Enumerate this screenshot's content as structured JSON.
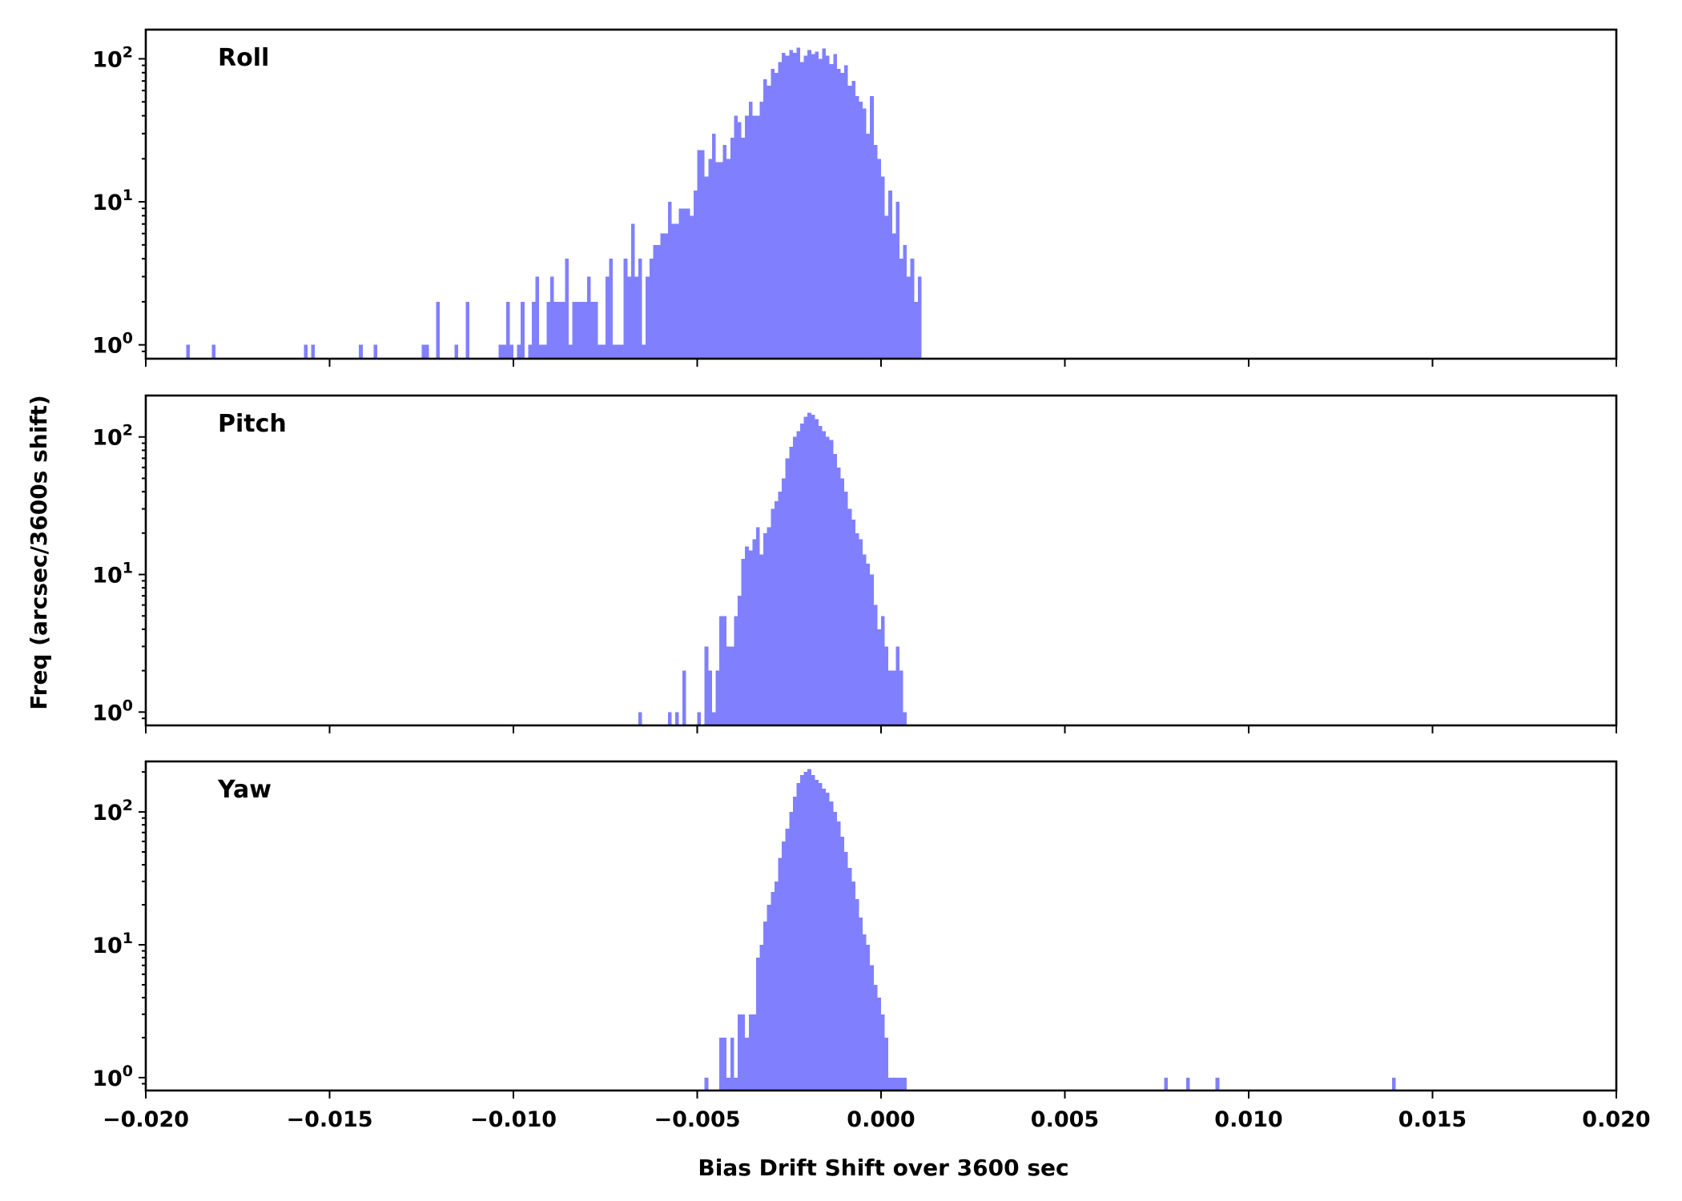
{
  "chart_data": {
    "type": "histogram",
    "y_scale": "log",
    "shared_x": true,
    "xlabel": "Bias Drift Shift over 3600 sec",
    "ylabel": "Freq (arcsec/3600s shift)",
    "xlim": [
      -0.02,
      0.02
    ],
    "xticks": [
      -0.02,
      -0.015,
      -0.01,
      -0.005,
      0.0,
      0.005,
      0.01,
      0.015,
      0.02
    ],
    "xtick_labels": [
      "−0.020",
      "−0.015",
      "−0.010",
      "−0.005",
      "0.000",
      "0.005",
      "0.010",
      "0.015",
      "0.020"
    ],
    "bar_color": "#8080ff",
    "grid": false,
    "panels": [
      {
        "label": "Roll",
        "ylim": [
          0.8,
          160
        ],
        "yticks": [
          {
            "value": 1,
            "exp": "0"
          },
          {
            "value": 10,
            "exp": "1"
          },
          {
            "value": 100,
            "exp": "2"
          }
        ],
        "bins": [
          [
            -0.0189,
            1
          ],
          [
            -0.0182,
            1
          ],
          [
            -0.0157,
            1
          ],
          [
            -0.0155,
            1
          ],
          [
            -0.0142,
            1
          ],
          [
            -0.0138,
            1
          ],
          [
            -0.0125,
            1
          ],
          [
            -0.0124,
            1
          ],
          [
            -0.0121,
            2
          ],
          [
            -0.0116,
            1
          ],
          [
            -0.0113,
            2
          ],
          [
            -0.0104,
            1
          ],
          [
            -0.0103,
            1
          ],
          [
            -0.0102,
            2
          ],
          [
            -0.0101,
            1
          ],
          [
            -0.0099,
            1
          ],
          [
            -0.0098,
            2
          ],
          [
            -0.0096,
            1
          ],
          [
            -0.0095,
            2
          ],
          [
            -0.0094,
            3
          ],
          [
            -0.0093,
            1
          ],
          [
            -0.0092,
            1
          ],
          [
            -0.0091,
            2
          ],
          [
            -0.009,
            3
          ],
          [
            -0.0089,
            2
          ],
          [
            -0.0088,
            2
          ],
          [
            -0.0087,
            2
          ],
          [
            -0.0086,
            4
          ],
          [
            -0.0085,
            1
          ],
          [
            -0.0084,
            2
          ],
          [
            -0.0083,
            2
          ],
          [
            -0.0082,
            2
          ],
          [
            -0.0081,
            2
          ],
          [
            -0.008,
            3
          ],
          [
            -0.0079,
            2
          ],
          [
            -0.0078,
            2
          ],
          [
            -0.0077,
            1
          ],
          [
            -0.0076,
            1
          ],
          [
            -0.0075,
            3
          ],
          [
            -0.0074,
            4
          ],
          [
            -0.0073,
            1
          ],
          [
            -0.0072,
            1
          ],
          [
            -0.0071,
            1
          ],
          [
            -0.007,
            4
          ],
          [
            -0.0069,
            3
          ],
          [
            -0.0068,
            7
          ],
          [
            -0.0067,
            3
          ],
          [
            -0.0066,
            4
          ],
          [
            -0.0065,
            1
          ],
          [
            -0.0064,
            3
          ],
          [
            -0.0063,
            4
          ],
          [
            -0.0062,
            5
          ],
          [
            -0.0061,
            5
          ],
          [
            -0.006,
            6
          ],
          [
            -0.0059,
            6
          ],
          [
            -0.0058,
            10
          ],
          [
            -0.0057,
            7
          ],
          [
            -0.0056,
            7
          ],
          [
            -0.0055,
            9
          ],
          [
            -0.0054,
            9
          ],
          [
            -0.0053,
            9
          ],
          [
            -0.0052,
            8
          ],
          [
            -0.0051,
            12
          ],
          [
            -0.005,
            23
          ],
          [
            -0.0049,
            23
          ],
          [
            -0.0048,
            15
          ],
          [
            -0.0047,
            20
          ],
          [
            -0.0046,
            30
          ],
          [
            -0.0045,
            19
          ],
          [
            -0.0044,
            19
          ],
          [
            -0.0043,
            25
          ],
          [
            -0.0042,
            20
          ],
          [
            -0.0041,
            28
          ],
          [
            -0.004,
            40
          ],
          [
            -0.0039,
            36
          ],
          [
            -0.0038,
            28
          ],
          [
            -0.0037,
            40
          ],
          [
            -0.0036,
            50
          ],
          [
            -0.0035,
            40
          ],
          [
            -0.0034,
            40
          ],
          [
            -0.0033,
            50
          ],
          [
            -0.0032,
            72
          ],
          [
            -0.0031,
            65
          ],
          [
            -0.003,
            85
          ],
          [
            -0.0029,
            80
          ],
          [
            -0.0028,
            95
          ],
          [
            -0.0027,
            110
          ],
          [
            -0.0026,
            105
          ],
          [
            -0.0025,
            115
          ],
          [
            -0.0024,
            110
          ],
          [
            -0.0023,
            120
          ],
          [
            -0.0022,
            95
          ],
          [
            -0.0021,
            105
          ],
          [
            -0.002,
            115
          ],
          [
            -0.0019,
            108
          ],
          [
            -0.0018,
            112
          ],
          [
            -0.0017,
            100
          ],
          [
            -0.0016,
            118
          ],
          [
            -0.0015,
            105
          ],
          [
            -0.0014,
            92
          ],
          [
            -0.0013,
            108
          ],
          [
            -0.0012,
            85
          ],
          [
            -0.0011,
            80
          ],
          [
            -0.001,
            90
          ],
          [
            -0.0009,
            65
          ],
          [
            -0.0008,
            70
          ],
          [
            -0.0007,
            55
          ],
          [
            -0.0006,
            50
          ],
          [
            -0.0005,
            45
          ],
          [
            -0.0004,
            30
          ],
          [
            -0.0003,
            55
          ],
          [
            -0.0002,
            25
          ],
          [
            -0.0001,
            20
          ],
          [
            0.0,
            15
          ],
          [
            0.0001,
            8
          ],
          [
            0.0002,
            12
          ],
          [
            0.0003,
            6
          ],
          [
            0.0004,
            10
          ],
          [
            0.0005,
            4
          ],
          [
            0.0006,
            5
          ],
          [
            0.0007,
            3
          ],
          [
            0.0008,
            4
          ],
          [
            0.0009,
            2
          ],
          [
            0.001,
            3
          ]
        ]
      },
      {
        "label": "Pitch",
        "ylim": [
          0.8,
          200
        ],
        "yticks": [
          {
            "value": 1,
            "exp": "0"
          },
          {
            "value": 10,
            "exp": "1"
          },
          {
            "value": 100,
            "exp": "2"
          }
        ],
        "bins": [
          [
            -0.0066,
            1
          ],
          [
            -0.0058,
            1
          ],
          [
            -0.0056,
            1
          ],
          [
            -0.0054,
            2
          ],
          [
            -0.005,
            1
          ],
          [
            -0.0048,
            3
          ],
          [
            -0.0047,
            2
          ],
          [
            -0.0046,
            1
          ],
          [
            -0.0045,
            2
          ],
          [
            -0.0044,
            5
          ],
          [
            -0.0043,
            5
          ],
          [
            -0.0042,
            3
          ],
          [
            -0.0041,
            3
          ],
          [
            -0.004,
            5
          ],
          [
            -0.0039,
            7
          ],
          [
            -0.0038,
            13
          ],
          [
            -0.0037,
            16
          ],
          [
            -0.0036,
            15
          ],
          [
            -0.0035,
            18
          ],
          [
            -0.0034,
            22
          ],
          [
            -0.0033,
            14
          ],
          [
            -0.0032,
            20
          ],
          [
            -0.0031,
            22
          ],
          [
            -0.003,
            30
          ],
          [
            -0.0029,
            34
          ],
          [
            -0.0028,
            40
          ],
          [
            -0.0027,
            50
          ],
          [
            -0.0026,
            70
          ],
          [
            -0.0025,
            85
          ],
          [
            -0.0024,
            100
          ],
          [
            -0.0023,
            110
          ],
          [
            -0.0022,
            125
          ],
          [
            -0.0021,
            140
          ],
          [
            -0.002,
            150
          ],
          [
            -0.0019,
            145
          ],
          [
            -0.0018,
            135
          ],
          [
            -0.0017,
            120
          ],
          [
            -0.0016,
            110
          ],
          [
            -0.0015,
            100
          ],
          [
            -0.0014,
            95
          ],
          [
            -0.0013,
            75
          ],
          [
            -0.0012,
            60
          ],
          [
            -0.0011,
            50
          ],
          [
            -0.001,
            40
          ],
          [
            -0.0009,
            30
          ],
          [
            -0.0008,
            25
          ],
          [
            -0.0007,
            20
          ],
          [
            -0.0006,
            18
          ],
          [
            -0.0005,
            14
          ],
          [
            -0.0004,
            12
          ],
          [
            -0.0003,
            10
          ],
          [
            -0.0002,
            6
          ],
          [
            -0.0001,
            4
          ],
          [
            0.0,
            5
          ],
          [
            0.0001,
            3
          ],
          [
            0.0002,
            2
          ],
          [
            0.0003,
            2
          ],
          [
            0.0004,
            3
          ],
          [
            0.0005,
            2
          ],
          [
            0.0006,
            1
          ]
        ]
      },
      {
        "label": "Yaw",
        "ylim": [
          0.8,
          240
        ],
        "yticks": [
          {
            "value": 1,
            "exp": "0"
          },
          {
            "value": 10,
            "exp": "1"
          },
          {
            "value": 100,
            "exp": "2"
          }
        ],
        "bins": [
          [
            -0.0048,
            1
          ],
          [
            -0.0044,
            2
          ],
          [
            -0.0043,
            2
          ],
          [
            -0.0042,
            1
          ],
          [
            -0.0041,
            2
          ],
          [
            -0.004,
            1
          ],
          [
            -0.0039,
            3
          ],
          [
            -0.0038,
            3
          ],
          [
            -0.0037,
            2
          ],
          [
            -0.0036,
            3
          ],
          [
            -0.0035,
            3
          ],
          [
            -0.0034,
            8
          ],
          [
            -0.0033,
            10
          ],
          [
            -0.0032,
            15
          ],
          [
            -0.0031,
            20
          ],
          [
            -0.003,
            25
          ],
          [
            -0.0029,
            30
          ],
          [
            -0.0028,
            45
          ],
          [
            -0.0027,
            60
          ],
          [
            -0.0026,
            75
          ],
          [
            -0.0025,
            100
          ],
          [
            -0.0024,
            130
          ],
          [
            -0.0023,
            165
          ],
          [
            -0.0022,
            190
          ],
          [
            -0.0021,
            200
          ],
          [
            -0.002,
            210
          ],
          [
            -0.0019,
            190
          ],
          [
            -0.0018,
            175
          ],
          [
            -0.0017,
            165
          ],
          [
            -0.0016,
            150
          ],
          [
            -0.0015,
            140
          ],
          [
            -0.0014,
            120
          ],
          [
            -0.0013,
            100
          ],
          [
            -0.0012,
            85
          ],
          [
            -0.0011,
            65
          ],
          [
            -0.001,
            50
          ],
          [
            -0.0009,
            38
          ],
          [
            -0.0008,
            30
          ],
          [
            -0.0007,
            22
          ],
          [
            -0.0006,
            16
          ],
          [
            -0.0005,
            12
          ],
          [
            -0.0004,
            10
          ],
          [
            -0.0003,
            7
          ],
          [
            -0.0002,
            5
          ],
          [
            -0.0001,
            4
          ],
          [
            0.0,
            3
          ],
          [
            0.0001,
            2
          ],
          [
            0.0002,
            1
          ],
          [
            0.0003,
            1
          ],
          [
            0.0004,
            1
          ],
          [
            0.0005,
            1
          ],
          [
            0.0006,
            1
          ],
          [
            0.0077,
            1
          ],
          [
            0.0083,
            1
          ],
          [
            0.0091,
            1
          ],
          [
            0.0139,
            1
          ]
        ]
      }
    ]
  }
}
